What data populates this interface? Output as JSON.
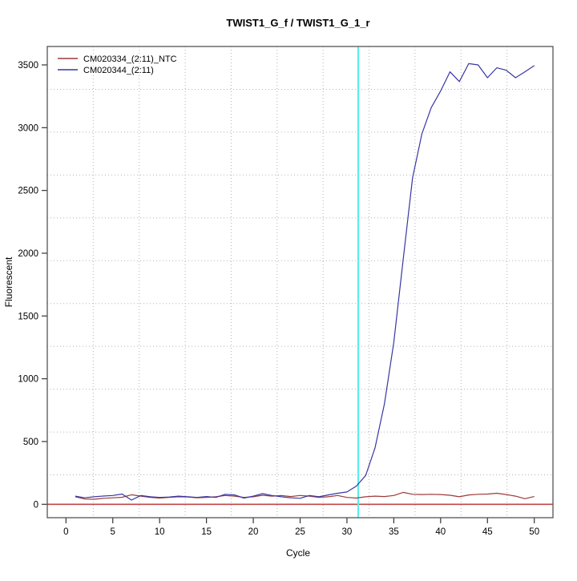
{
  "chart": {
    "title": "TWIST1_G_f / TWIST1_G_1_r",
    "xlabel": "Cycle",
    "ylabel": "Fluorescent"
  },
  "chart_data": {
    "type": "line",
    "title": "TWIST1_G_f / TWIST1_G_1_r",
    "xlabel": "Cycle",
    "ylabel": "Fluorescent",
    "x_ticks": [
      0,
      5,
      10,
      15,
      20,
      25,
      30,
      35,
      40,
      45,
      50
    ],
    "y_ticks": [
      0,
      500,
      1000,
      1500,
      2000,
      2500,
      3000,
      3500
    ],
    "xlim": [
      -2.0,
      51.7
    ],
    "ylim": [
      -110,
      3650
    ],
    "grid": {
      "on": true,
      "divisions_x": 11,
      "divisions_y": 11,
      "style": "dotted",
      "color": "#b3b3b3"
    },
    "threshold_cycle_line": {
      "x": 31.2,
      "color": "#55eeee"
    },
    "zero_line": {
      "y": 0,
      "color": "#c24747"
    },
    "legend": {
      "position": "top-left"
    },
    "x_start_cycle": 1,
    "series": [
      {
        "name": "CM020334_(2:11)_NTC",
        "color": "#9e3a3a",
        "values": [
          60,
          42,
          40,
          48,
          52,
          56,
          76,
          65,
          55,
          50,
          55,
          60,
          58,
          52,
          55,
          60,
          70,
          65,
          55,
          60,
          72,
          65,
          70,
          62,
          70,
          65,
          55,
          60,
          70,
          55,
          50,
          60,
          65,
          62,
          70,
          95,
          80,
          78,
          80,
          78,
          72,
          60,
          75,
          80,
          82,
          88,
          78,
          65,
          45,
          62
        ]
      },
      {
        "name": "CM020344_(2:11)",
        "color": "#3737a3",
        "values": [
          65,
          52,
          60,
          66,
          70,
          82,
          34,
          70,
          60,
          55,
          58,
          65,
          60,
          55,
          62,
          55,
          80,
          75,
          50,
          65,
          85,
          70,
          60,
          52,
          48,
          70,
          60,
          75,
          88,
          98,
          145,
          230,
          450,
          800,
          1290,
          1950,
          2600,
          2950,
          3160,
          3292,
          3445,
          3367,
          3510,
          3500,
          3398,
          3477,
          3458,
          3398,
          3445,
          3494
        ]
      }
    ]
  }
}
